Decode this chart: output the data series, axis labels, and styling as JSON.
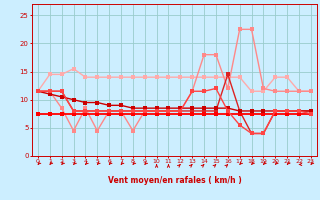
{
  "background_color": "#cceeff",
  "grid_color": "#99cccc",
  "xlabel": "Vent moyen/en rafales ( km/h )",
  "x": [
    0,
    1,
    2,
    3,
    4,
    5,
    6,
    7,
    8,
    9,
    10,
    11,
    12,
    13,
    14,
    15,
    16,
    17,
    18,
    19,
    20,
    21,
    22,
    23
  ],
  "series": [
    {
      "color": "#ffaaaa",
      "linewidth": 1.0,
      "markersize": 2.5,
      "values": [
        11.5,
        14.5,
        14.5,
        15.5,
        14.0,
        14.0,
        14.0,
        14.0,
        14.0,
        14.0,
        14.0,
        14.0,
        14.0,
        14.0,
        14.0,
        14.0,
        14.0,
        14.0,
        11.5,
        11.5,
        14.0,
        14.0,
        11.5,
        11.5
      ]
    },
    {
      "color": "#ff8888",
      "linewidth": 1.0,
      "markersize": 2.5,
      "values": [
        11.5,
        11.5,
        8.5,
        4.5,
        8.5,
        4.5,
        8.0,
        8.0,
        4.5,
        8.0,
        8.0,
        8.0,
        8.0,
        11.5,
        18.0,
        18.0,
        12.0,
        22.5,
        22.5,
        12.0,
        11.5,
        11.5,
        11.5,
        11.5
      ]
    },
    {
      "color": "#dd2222",
      "linewidth": 1.0,
      "markersize": 2.5,
      "values": [
        11.5,
        11.5,
        11.5,
        8.0,
        8.0,
        8.0,
        8.0,
        8.0,
        8.0,
        8.0,
        8.0,
        8.0,
        8.0,
        8.0,
        8.0,
        8.0,
        14.5,
        8.0,
        4.0,
        4.0,
        8.0,
        8.0,
        8.0,
        8.0
      ]
    },
    {
      "color": "#ff0000",
      "linewidth": 1.3,
      "markersize": 2.5,
      "values": [
        7.5,
        7.5,
        7.5,
        7.5,
        7.5,
        7.5,
        7.5,
        7.5,
        7.5,
        7.5,
        7.5,
        7.5,
        7.5,
        7.5,
        7.5,
        7.5,
        7.5,
        7.5,
        7.5,
        7.5,
        7.5,
        7.5,
        7.5,
        7.5
      ]
    },
    {
      "color": "#cc0000",
      "linewidth": 1.0,
      "markersize": 2.5,
      "values": [
        11.5,
        11.0,
        10.5,
        10.0,
        9.5,
        9.5,
        9.0,
        9.0,
        8.5,
        8.5,
        8.5,
        8.5,
        8.5,
        8.5,
        8.5,
        8.5,
        8.5,
        8.0,
        8.0,
        8.0,
        8.0,
        8.0,
        8.0,
        8.0
      ]
    },
    {
      "color": "#ff4444",
      "linewidth": 1.0,
      "markersize": 2.5,
      "values": [
        11.5,
        11.5,
        11.5,
        8.0,
        8.0,
        8.0,
        8.0,
        8.0,
        8.0,
        8.0,
        8.0,
        8.0,
        8.0,
        11.5,
        11.5,
        12.0,
        8.0,
        5.5,
        4.0,
        4.0,
        8.0,
        8.0,
        8.0,
        7.5
      ]
    }
  ],
  "arrow_angles": [
    225,
    225,
    225,
    225,
    225,
    225,
    225,
    225,
    225,
    225,
    0,
    0,
    45,
    45,
    45,
    45,
    45,
    225,
    225,
    225,
    225,
    225,
    270,
    225
  ],
  "ylim": [
    0,
    27
  ],
  "xlim": [
    -0.5,
    23.5
  ],
  "yticks": [
    0,
    5,
    10,
    15,
    20,
    25
  ],
  "xticks": [
    0,
    1,
    2,
    3,
    4,
    5,
    6,
    7,
    8,
    9,
    10,
    11,
    12,
    13,
    14,
    15,
    16,
    17,
    18,
    19,
    20,
    21,
    22,
    23
  ]
}
